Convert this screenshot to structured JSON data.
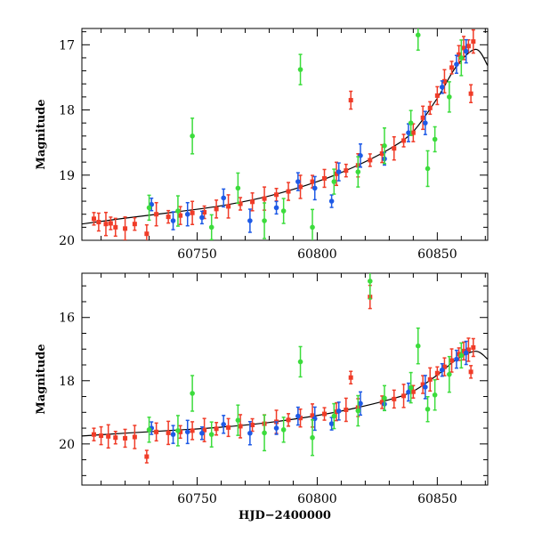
{
  "colors": {
    "red": "#f03c28",
    "blue": "#1e5ae6",
    "green": "#3cdc3c",
    "model": "#000000",
    "frame": "#000000"
  },
  "chart_data": [
    {
      "type": "scatter",
      "title": "",
      "xlabel": "",
      "ylabel": "Magnitude",
      "xlim": [
        60702,
        60871
      ],
      "ylim": [
        20.0,
        16.75
      ],
      "y_inverted": true,
      "x_ticks": [
        60750,
        60800,
        60850
      ],
      "y_ticks": [
        17,
        18,
        19,
        20
      ],
      "x_tick_labels": [
        "60750",
        "60800",
        "60850"
      ],
      "y_tick_labels": [
        "17",
        "18",
        "19",
        "20"
      ],
      "model_curve": {
        "x": [
          60702,
          60720,
          60740,
          60760,
          60780,
          60800,
          60815,
          60830,
          60840,
          60850,
          60858,
          60866,
          60871
        ],
        "y": [
          19.75,
          19.66,
          19.57,
          19.47,
          19.32,
          19.1,
          18.88,
          18.6,
          18.33,
          17.82,
          17.33,
          17.07,
          17.32
        ]
      },
      "series": [
        {
          "color_key": "red",
          "points": [
            {
              "x": 60707,
              "y": 19.67
            },
            {
              "x": 60709,
              "y": 19.72
            },
            {
              "x": 60712,
              "y": 19.75
            },
            {
              "x": 60714,
              "y": 19.74
            },
            {
              "x": 60716,
              "y": 19.8
            },
            {
              "x": 60720,
              "y": 19.82
            },
            {
              "x": 60724,
              "y": 19.75
            },
            {
              "x": 60729,
              "y": 19.9
            },
            {
              "x": 60733,
              "y": 19.6
            },
            {
              "x": 60738,
              "y": 19.64
            },
            {
              "x": 60743,
              "y": 19.62
            },
            {
              "x": 60748,
              "y": 19.58
            },
            {
              "x": 60753,
              "y": 19.57
            },
            {
              "x": 60758,
              "y": 19.52
            },
            {
              "x": 60763,
              "y": 19.48
            },
            {
              "x": 60768,
              "y": 19.44
            },
            {
              "x": 60773,
              "y": 19.41
            },
            {
              "x": 60778,
              "y": 19.36
            },
            {
              "x": 60783,
              "y": 19.3
            },
            {
              "x": 60788,
              "y": 19.25
            },
            {
              "x": 60793,
              "y": 19.18
            },
            {
              "x": 60798,
              "y": 19.1
            },
            {
              "x": 60803,
              "y": 19.05
            },
            {
              "x": 60808,
              "y": 18.98
            },
            {
              "x": 60812,
              "y": 18.93
            },
            {
              "x": 60814,
              "y": 17.85
            },
            {
              "x": 60817,
              "y": 18.85
            },
            {
              "x": 60822,
              "y": 18.77
            },
            {
              "x": 60827,
              "y": 18.67
            },
            {
              "x": 60832,
              "y": 18.59
            },
            {
              "x": 60836,
              "y": 18.47
            },
            {
              "x": 60840,
              "y": 18.35
            },
            {
              "x": 60844,
              "y": 18.12
            },
            {
              "x": 60847,
              "y": 17.97
            },
            {
              "x": 60850,
              "y": 17.78
            },
            {
              "x": 60853,
              "y": 17.56
            },
            {
              "x": 60856,
              "y": 17.35
            },
            {
              "x": 60859,
              "y": 17.15
            },
            {
              "x": 60861,
              "y": 17.05
            },
            {
              "x": 60863,
              "y": 17.02
            },
            {
              "x": 60864,
              "y": 17.75
            },
            {
              "x": 60865,
              "y": 16.95
            }
          ]
        },
        {
          "color_key": "blue",
          "points": [
            {
              "x": 60731,
              "y": 19.45
            },
            {
              "x": 60740,
              "y": 19.7
            },
            {
              "x": 60746,
              "y": 19.6
            },
            {
              "x": 60752,
              "y": 19.65
            },
            {
              "x": 60761,
              "y": 19.35
            },
            {
              "x": 60772,
              "y": 19.7
            },
            {
              "x": 60783,
              "y": 19.5
            },
            {
              "x": 60792,
              "y": 19.1
            },
            {
              "x": 60799,
              "y": 19.2
            },
            {
              "x": 60806,
              "y": 19.4
            },
            {
              "x": 60809,
              "y": 18.95
            },
            {
              "x": 60818,
              "y": 18.7
            },
            {
              "x": 60828,
              "y": 18.75
            },
            {
              "x": 60838,
              "y": 18.35
            },
            {
              "x": 60845,
              "y": 18.2
            },
            {
              "x": 60852,
              "y": 17.65
            },
            {
              "x": 60858,
              "y": 17.3
            },
            {
              "x": 60862,
              "y": 17.1
            }
          ]
        },
        {
          "color_key": "green",
          "points": [
            {
              "x": 60730,
              "y": 19.5
            },
            {
              "x": 60742,
              "y": 19.55
            },
            {
              "x": 60748,
              "y": 18.4
            },
            {
              "x": 60756,
              "y": 19.8
            },
            {
              "x": 60767,
              "y": 19.2
            },
            {
              "x": 60778,
              "y": 19.7
            },
            {
              "x": 60786,
              "y": 19.55
            },
            {
              "x": 60793,
              "y": 17.38
            },
            {
              "x": 60798,
              "y": 19.8
            },
            {
              "x": 60807,
              "y": 19.1
            },
            {
              "x": 60817,
              "y": 18.95
            },
            {
              "x": 60828,
              "y": 18.55
            },
            {
              "x": 60839,
              "y": 18.2
            },
            {
              "x": 60842,
              "y": 16.85
            },
            {
              "x": 60846,
              "y": 18.9
            },
            {
              "x": 60849,
              "y": 18.45
            },
            {
              "x": 60855,
              "y": 17.8
            },
            {
              "x": 60860,
              "y": 17.2
            }
          ]
        }
      ]
    },
    {
      "type": "scatter",
      "title": "",
      "xlabel": "HJD−2400000",
      "ylabel": "Magnitude",
      "xlim": [
        60702,
        60871
      ],
      "ylim": [
        21.3,
        14.6
      ],
      "y_inverted": true,
      "x_ticks": [
        60750,
        60800,
        60850
      ],
      "y_ticks": [
        16,
        18,
        20
      ],
      "x_tick_labels": [
        "60750",
        "60800",
        "60850"
      ],
      "y_tick_labels": [
        "16",
        "18",
        "20"
      ],
      "model_curve": {
        "x": [
          60702,
          60720,
          60740,
          60760,
          60780,
          60800,
          60815,
          60830,
          60840,
          60850,
          60858,
          60866,
          60871
        ],
        "y": [
          19.75,
          19.66,
          19.57,
          19.47,
          19.32,
          19.1,
          18.88,
          18.6,
          18.33,
          17.82,
          17.33,
          17.07,
          17.32
        ]
      },
      "series": [
        {
          "color_key": "red",
          "points": [
            {
              "x": 60707,
              "y": 19.7
            },
            {
              "x": 60710,
              "y": 19.74
            },
            {
              "x": 60713,
              "y": 19.76
            },
            {
              "x": 60716,
              "y": 19.8
            },
            {
              "x": 60720,
              "y": 19.82
            },
            {
              "x": 60724,
              "y": 19.78
            },
            {
              "x": 60729,
              "y": 20.4
            },
            {
              "x": 60733,
              "y": 19.62
            },
            {
              "x": 60738,
              "y": 19.65
            },
            {
              "x": 60743,
              "y": 19.62
            },
            {
              "x": 60748,
              "y": 19.58
            },
            {
              "x": 60753,
              "y": 19.56
            },
            {
              "x": 60758,
              "y": 19.52
            },
            {
              "x": 60763,
              "y": 19.48
            },
            {
              "x": 60768,
              "y": 19.44
            },
            {
              "x": 60773,
              "y": 19.4
            },
            {
              "x": 60778,
              "y": 19.36
            },
            {
              "x": 60783,
              "y": 19.3
            },
            {
              "x": 60788,
              "y": 19.24
            },
            {
              "x": 60793,
              "y": 19.18
            },
            {
              "x": 60798,
              "y": 19.1
            },
            {
              "x": 60803,
              "y": 19.05
            },
            {
              "x": 60808,
              "y": 18.98
            },
            {
              "x": 60812,
              "y": 18.92
            },
            {
              "x": 60814,
              "y": 17.9
            },
            {
              "x": 60817,
              "y": 18.85
            },
            {
              "x": 60822,
              "y": 15.35
            },
            {
              "x": 60827,
              "y": 18.68
            },
            {
              "x": 60832,
              "y": 18.58
            },
            {
              "x": 60836,
              "y": 18.48
            },
            {
              "x": 60840,
              "y": 18.35
            },
            {
              "x": 60844,
              "y": 18.12
            },
            {
              "x": 60847,
              "y": 17.96
            },
            {
              "x": 60850,
              "y": 17.76
            },
            {
              "x": 60853,
              "y": 17.56
            },
            {
              "x": 60856,
              "y": 17.36
            },
            {
              "x": 60859,
              "y": 17.16
            },
            {
              "x": 60861,
              "y": 17.06
            },
            {
              "x": 60863,
              "y": 17.02
            },
            {
              "x": 60864,
              "y": 17.72
            },
            {
              "x": 60865,
              "y": 16.95
            }
          ]
        },
        {
          "color_key": "blue",
          "points": [
            {
              "x": 60731,
              "y": 19.5
            },
            {
              "x": 60740,
              "y": 19.7
            },
            {
              "x": 60746,
              "y": 19.62
            },
            {
              "x": 60752,
              "y": 19.66
            },
            {
              "x": 60761,
              "y": 19.38
            },
            {
              "x": 60772,
              "y": 19.66
            },
            {
              "x": 60783,
              "y": 19.5
            },
            {
              "x": 60792,
              "y": 19.12
            },
            {
              "x": 60799,
              "y": 19.2
            },
            {
              "x": 60806,
              "y": 19.36
            },
            {
              "x": 60809,
              "y": 18.96
            },
            {
              "x": 60818,
              "y": 18.72
            },
            {
              "x": 60828,
              "y": 18.74
            },
            {
              "x": 60838,
              "y": 18.36
            },
            {
              "x": 60845,
              "y": 18.2
            },
            {
              "x": 60852,
              "y": 17.66
            },
            {
              "x": 60858,
              "y": 17.32
            },
            {
              "x": 60862,
              "y": 17.12
            }
          ]
        },
        {
          "color_key": "green",
          "points": [
            {
              "x": 60730,
              "y": 19.55
            },
            {
              "x": 60742,
              "y": 19.58
            },
            {
              "x": 60748,
              "y": 18.4
            },
            {
              "x": 60756,
              "y": 19.7
            },
            {
              "x": 60767,
              "y": 19.25
            },
            {
              "x": 60778,
              "y": 19.65
            },
            {
              "x": 60786,
              "y": 19.55
            },
            {
              "x": 60793,
              "y": 17.4
            },
            {
              "x": 60798,
              "y": 19.8
            },
            {
              "x": 60807,
              "y": 19.12
            },
            {
              "x": 60817,
              "y": 18.95
            },
            {
              "x": 60822,
              "y": 14.85
            },
            {
              "x": 60828,
              "y": 18.55
            },
            {
              "x": 60839,
              "y": 18.22
            },
            {
              "x": 60842,
              "y": 16.9
            },
            {
              "x": 60846,
              "y": 18.9
            },
            {
              "x": 60849,
              "y": 18.45
            },
            {
              "x": 60855,
              "y": 17.8
            },
            {
              "x": 60860,
              "y": 17.2
            }
          ]
        }
      ]
    }
  ]
}
